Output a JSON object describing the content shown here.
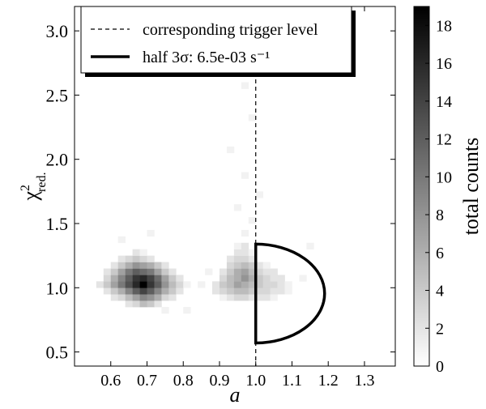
{
  "chart_data": {
    "type": "hist2d",
    "xlabel": "a",
    "ylabel": {
      "symbol": "χ",
      "sup": "2",
      "sub": "red."
    },
    "colorbar_label": "total counts",
    "xlim": [
      0.5,
      1.385
    ],
    "ylim": [
      0.39,
      3.19
    ],
    "clim": [
      0,
      19
    ],
    "xticks": [
      0.6,
      0.7,
      0.8,
      0.9,
      {
        "value": 1,
        "label": "1.0"
      },
      1.1,
      1.2,
      1.3
    ],
    "yticks": [
      0.5,
      {
        "value": 1,
        "label": "1.0"
      },
      1.5,
      {
        "value": 2,
        "label": "2.0"
      },
      2.5,
      {
        "value": 3,
        "label": "3.0"
      }
    ],
    "cticks": [
      0,
      2,
      4,
      6,
      8,
      10,
      12,
      14,
      16,
      18
    ],
    "colormap": "gray_r",
    "bin_size": [
      0.02,
      0.05
    ],
    "cells": [
      [
        0.64,
        0.85,
        2
      ],
      [
        0.66,
        0.85,
        3
      ],
      [
        0.68,
        0.85,
        5
      ],
      [
        0.7,
        0.85,
        4
      ],
      [
        0.72,
        0.85,
        2
      ],
      [
        0.6,
        0.9,
        2
      ],
      [
        0.62,
        0.9,
        3
      ],
      [
        0.64,
        0.9,
        5
      ],
      [
        0.66,
        0.9,
        7
      ],
      [
        0.68,
        0.9,
        9
      ],
      [
        0.7,
        0.9,
        8
      ],
      [
        0.72,
        0.9,
        6
      ],
      [
        0.74,
        0.9,
        3
      ],
      [
        0.76,
        0.9,
        2
      ],
      [
        0.58,
        0.95,
        2
      ],
      [
        0.6,
        0.95,
        4
      ],
      [
        0.62,
        0.95,
        6
      ],
      [
        0.64,
        0.95,
        9
      ],
      [
        0.66,
        0.95,
        12
      ],
      [
        0.68,
        0.95,
        14
      ],
      [
        0.7,
        0.95,
        12
      ],
      [
        0.72,
        0.95,
        9
      ],
      [
        0.74,
        0.95,
        6
      ],
      [
        0.76,
        0.95,
        4
      ],
      [
        0.78,
        0.95,
        2
      ],
      [
        0.56,
        1.0,
        2
      ],
      [
        0.58,
        1.0,
        4
      ],
      [
        0.6,
        1.0,
        7
      ],
      [
        0.62,
        1.0,
        10
      ],
      [
        0.64,
        1.0,
        13
      ],
      [
        0.66,
        1.0,
        16
      ],
      [
        0.68,
        1.0,
        19
      ],
      [
        0.7,
        1.0,
        15
      ],
      [
        0.72,
        1.0,
        12
      ],
      [
        0.74,
        1.0,
        8
      ],
      [
        0.76,
        1.0,
        5
      ],
      [
        0.78,
        1.0,
        3
      ],
      [
        0.8,
        1.0,
        1
      ],
      [
        0.58,
        1.05,
        3
      ],
      [
        0.6,
        1.05,
        6
      ],
      [
        0.62,
        1.05,
        9
      ],
      [
        0.64,
        1.05,
        12
      ],
      [
        0.66,
        1.05,
        15
      ],
      [
        0.68,
        1.05,
        16
      ],
      [
        0.7,
        1.05,
        14
      ],
      [
        0.72,
        1.05,
        11
      ],
      [
        0.74,
        1.05,
        7
      ],
      [
        0.76,
        1.05,
        4
      ],
      [
        0.78,
        1.05,
        2
      ],
      [
        0.58,
        1.1,
        2
      ],
      [
        0.6,
        1.1,
        4
      ],
      [
        0.62,
        1.1,
        7
      ],
      [
        0.64,
        1.1,
        10
      ],
      [
        0.66,
        1.1,
        12
      ],
      [
        0.68,
        1.1,
        11
      ],
      [
        0.7,
        1.1,
        10
      ],
      [
        0.72,
        1.1,
        7
      ],
      [
        0.74,
        1.1,
        4
      ],
      [
        0.76,
        1.1,
        2
      ],
      [
        0.6,
        1.15,
        2
      ],
      [
        0.62,
        1.15,
        4
      ],
      [
        0.64,
        1.15,
        6
      ],
      [
        0.66,
        1.15,
        8
      ],
      [
        0.68,
        1.15,
        7
      ],
      [
        0.7,
        1.15,
        6
      ],
      [
        0.72,
        1.15,
        4
      ],
      [
        0.74,
        1.15,
        2
      ],
      [
        0.62,
        1.2,
        2
      ],
      [
        0.64,
        1.2,
        3
      ],
      [
        0.66,
        1.2,
        4
      ],
      [
        0.68,
        1.2,
        3
      ],
      [
        0.7,
        1.2,
        2
      ],
      [
        0.66,
        1.25,
        2
      ],
      [
        0.68,
        1.25,
        1
      ],
      [
        0.9,
        0.9,
        1
      ],
      [
        0.92,
        0.9,
        2
      ],
      [
        0.94,
        0.9,
        3
      ],
      [
        0.96,
        0.9,
        3
      ],
      [
        0.98,
        0.9,
        2
      ],
      [
        1.0,
        0.9,
        2
      ],
      [
        1.02,
        0.9,
        2
      ],
      [
        1.04,
        0.9,
        1
      ],
      [
        0.88,
        0.95,
        2
      ],
      [
        0.9,
        0.95,
        3
      ],
      [
        0.92,
        0.95,
        4
      ],
      [
        0.94,
        0.95,
        5
      ],
      [
        0.96,
        0.95,
        5
      ],
      [
        0.98,
        0.95,
        4
      ],
      [
        1.0,
        0.95,
        3
      ],
      [
        1.02,
        0.95,
        3
      ],
      [
        1.04,
        0.95,
        2
      ],
      [
        1.06,
        0.95,
        2
      ],
      [
        1.08,
        0.95,
        1
      ],
      [
        0.88,
        1.0,
        2
      ],
      [
        0.9,
        1.0,
        4
      ],
      [
        0.92,
        1.0,
        5
      ],
      [
        0.94,
        1.0,
        7
      ],
      [
        0.96,
        1.0,
        6
      ],
      [
        0.98,
        1.0,
        5
      ],
      [
        1.0,
        1.0,
        4
      ],
      [
        1.02,
        1.0,
        3
      ],
      [
        1.04,
        1.0,
        3
      ],
      [
        1.06,
        1.0,
        2
      ],
      [
        1.08,
        1.0,
        1
      ],
      [
        0.9,
        1.05,
        3
      ],
      [
        0.92,
        1.05,
        5
      ],
      [
        0.94,
        1.05,
        6
      ],
      [
        0.96,
        1.05,
        8
      ],
      [
        0.98,
        1.05,
        6
      ],
      [
        1.0,
        1.05,
        4
      ],
      [
        1.02,
        1.05,
        3
      ],
      [
        1.04,
        1.05,
        2
      ],
      [
        1.06,
        1.05,
        2
      ],
      [
        0.9,
        1.1,
        2
      ],
      [
        0.92,
        1.1,
        4
      ],
      [
        0.94,
        1.1,
        6
      ],
      [
        0.96,
        1.1,
        7
      ],
      [
        0.98,
        1.1,
        5
      ],
      [
        1.0,
        1.1,
        3
      ],
      [
        1.02,
        1.1,
        2
      ],
      [
        1.04,
        1.1,
        2
      ],
      [
        0.92,
        1.15,
        3
      ],
      [
        0.94,
        1.15,
        4
      ],
      [
        0.96,
        1.15,
        5
      ],
      [
        0.98,
        1.15,
        4
      ],
      [
        1.0,
        1.15,
        2
      ],
      [
        1.02,
        1.15,
        1
      ],
      [
        0.92,
        1.2,
        2
      ],
      [
        0.94,
        1.2,
        3
      ],
      [
        0.96,
        1.2,
        3
      ],
      [
        0.98,
        1.2,
        2
      ],
      [
        0.94,
        1.25,
        2
      ],
      [
        0.96,
        1.25,
        2
      ],
      [
        0.98,
        1.25,
        1
      ],
      [
        0.94,
        1.3,
        1
      ],
      [
        0.96,
        1.3,
        2
      ],
      [
        0.96,
        1.4,
        1
      ],
      [
        0.98,
        1.5,
        1
      ],
      [
        0.94,
        1.6,
        1
      ],
      [
        1.0,
        1.7,
        1
      ],
      [
        0.96,
        1.85,
        1
      ],
      [
        0.92,
        2.05,
        1
      ],
      [
        0.98,
        2.3,
        1
      ],
      [
        0.96,
        2.55,
        1
      ],
      [
        0.62,
        1.35,
        1
      ],
      [
        0.7,
        1.4,
        1
      ],
      [
        0.8,
        0.8,
        1
      ],
      [
        0.74,
        0.8,
        1
      ],
      [
        1.12,
        1.05,
        1
      ],
      [
        1.14,
        1.3,
        1
      ],
      [
        0.84,
        1.0,
        1
      ],
      [
        0.86,
        1.1,
        1
      ]
    ],
    "trigger_x": 1.0,
    "half_ellipse": {
      "center": [
        1.0,
        0.955
      ],
      "radii": [
        0.19,
        0.385
      ]
    },
    "legend": {
      "corner": "upper left",
      "entries": [
        "corresponding trigger level",
        "half 3σ: 6.5e-03 s⁻¹"
      ]
    }
  }
}
